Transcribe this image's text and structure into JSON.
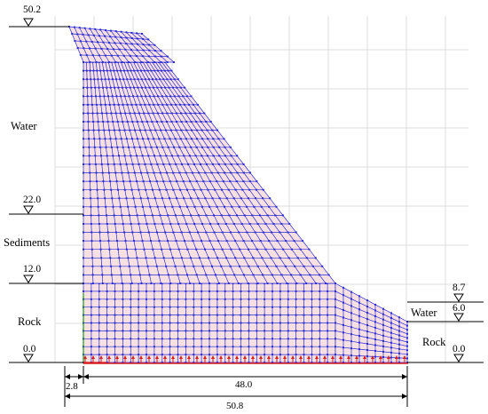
{
  "elevations": {
    "crest": "50.2",
    "left_water_sediment": "22.0",
    "left_sediment_rock": "12.0",
    "left_base": "0.0",
    "right_top": "8.7",
    "right_water": "6.0",
    "right_base": "0.0"
  },
  "regions": {
    "water_left": "Water",
    "sediments": "Sediments",
    "rock_left": "Rock",
    "water_right": "Water",
    "rock_right": "Rock"
  },
  "dimensions": {
    "heel_offset": "2.8",
    "dam_base": "48.0",
    "total_base": "50.8"
  },
  "colors": {
    "mesh_fill": "#f6e0e2",
    "mesh_line": "#2b2bd6",
    "support": "#d81b1b",
    "axis_green": "#1a9a1a"
  }
}
